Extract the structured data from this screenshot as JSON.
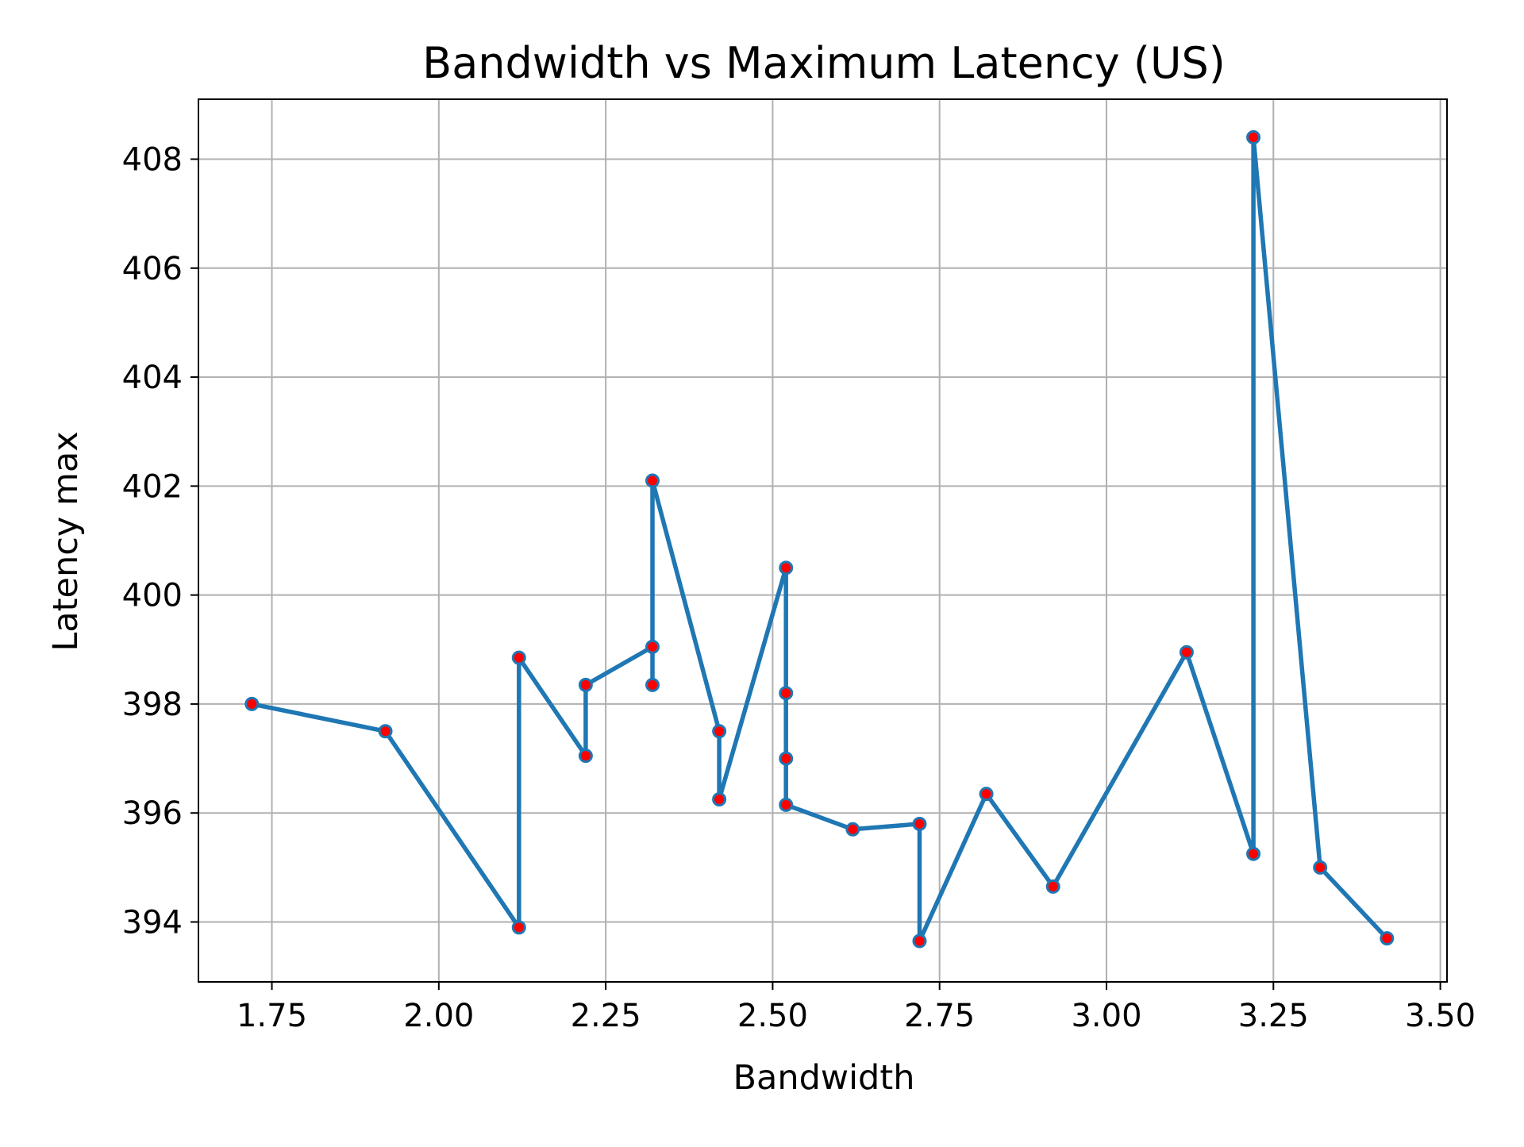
{
  "chart_data": {
    "type": "line",
    "title": "Bandwidth vs Maximum Latency (US)",
    "xlabel": "Bandwidth",
    "ylabel": "Latency max",
    "xlim": [
      1.64,
      3.51
    ],
    "ylim": [
      392.9,
      409.1
    ],
    "x_ticks": [
      1.75,
      2.0,
      2.25,
      2.5,
      2.75,
      3.0,
      3.25,
      3.5
    ],
    "x_tick_labels": [
      "1.75",
      "2.00",
      "2.25",
      "2.50",
      "2.75",
      "3.00",
      "3.25",
      "3.50"
    ],
    "y_ticks": [
      394,
      396,
      398,
      400,
      402,
      404,
      406,
      408
    ],
    "y_tick_labels": [
      "394",
      "396",
      "398",
      "400",
      "402",
      "404",
      "406",
      "408"
    ],
    "grid": true,
    "legend": "none",
    "series": [
      {
        "line_color": "#1f77b4",
        "marker_color": "#ff0000",
        "marker_edge_color": "#1f77b4",
        "x": [
          1.72,
          1.92,
          2.12,
          2.12,
          2.22,
          2.22,
          2.32,
          2.32,
          2.32,
          2.42,
          2.42,
          2.52,
          2.52,
          2.52,
          2.52,
          2.62,
          2.72,
          2.72,
          2.82,
          2.92,
          3.12,
          3.22,
          3.22,
          3.32,
          3.42
        ],
        "y": [
          398.0,
          397.5,
          393.9,
          398.85,
          397.05,
          398.35,
          399.05,
          398.35,
          402.1,
          397.5,
          396.25,
          400.5,
          398.2,
          397.0,
          396.15,
          395.7,
          395.8,
          393.65,
          396.35,
          394.65,
          398.95,
          395.25,
          408.4,
          395.0,
          393.7
        ]
      }
    ]
  }
}
